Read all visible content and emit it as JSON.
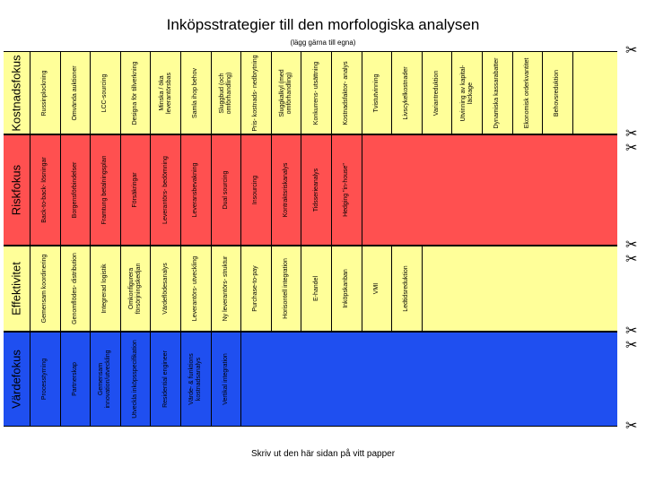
{
  "title": "Inköpsstrategier till den morfologiska analysen",
  "subtitle": "(lägg gärna till egna)",
  "footer": "Skriv ut den här sidan på vitt papper",
  "cut_icon": "scissors-icon",
  "cut_glyph": "✂",
  "bands": [
    {
      "category": "Kostnadsfokus",
      "color": "#ffff99",
      "items": [
        "Russinplockning",
        "Omvända auktioner",
        "LCC-sourcing",
        "Designa för tillverkning",
        "Minska / öka leverantörsbas",
        "Samla ihop behov",
        "Sluggbud (och omförhandling)",
        "Pris- kostnads- nedbrytning",
        "Sluggkalkyl (med omförhandling)",
        "Konkurrens- utsättning",
        "Kostnadsfaktor- analys",
        "Tvistutvinning",
        "Livscykelkostnader",
        "Variantreduktion",
        "Utvinning av kapital- läckage",
        "Dynamiska kassarabatter",
        "Ekonomisk orderkvantitet",
        "Behovsreduktion"
      ]
    },
    {
      "category": "Riskfokus",
      "color": "#ff5050",
      "items": [
        "Back-to-back- lösningar",
        "Borgensförbindelser",
        "Framtung betalningsplan",
        "Försäkringar",
        "Leverantörs- bedömning",
        "Leveransbevakning",
        "Dual sourcing",
        "Insourcing",
        "Kontraktsriskanalys",
        "Tidsserieanalys",
        "Hedging \"in-house\""
      ]
    },
    {
      "category": "Effektivitet",
      "color": "#ffff99",
      "items": [
        "Gemensam koordinering",
        "Genomflödes- distribution",
        "Integrerad logistik",
        "Omkonfigurera försörjningskedjan",
        "Värdeflödesanalys",
        "Leverantörs- utveckling",
        "Ny leverantörs- struktur",
        "Purchase-to-pay",
        "Horisontell integration",
        "E-handel",
        "Inköpskanban",
        "VMI",
        "Ledtidsreduktion"
      ]
    },
    {
      "category": "Värdefokus",
      "color": "#1f4ff0",
      "items": [
        "Processtyrning",
        "Partnerskap",
        "Gemensam innovation/utveckling",
        "Utveckla inköpsspecifikation",
        "Residential engineer",
        "Värde- & funktions kostnadsanalys",
        "Vertikal integration"
      ]
    }
  ]
}
